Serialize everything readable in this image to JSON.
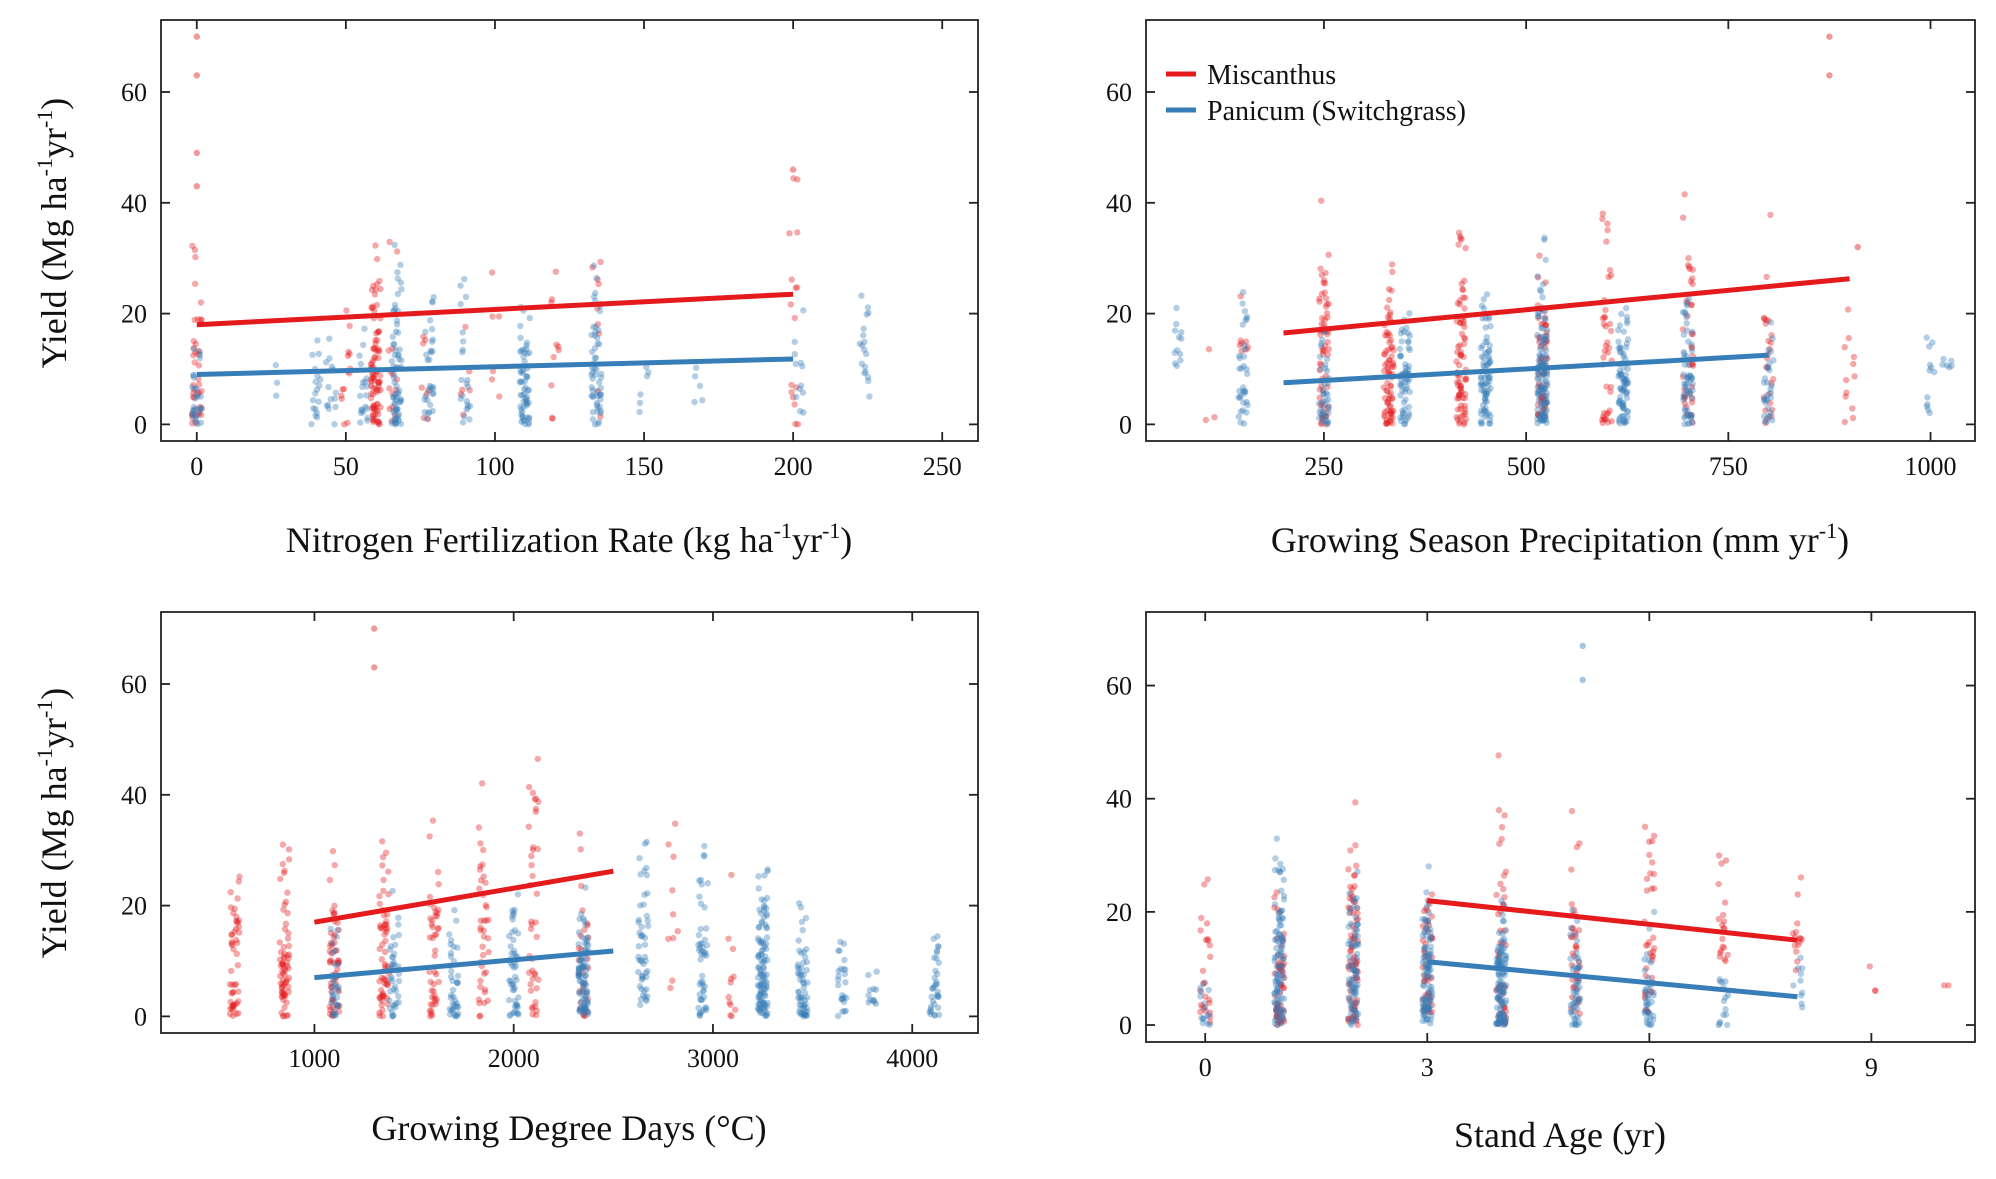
{
  "figure": {
    "ylabel_main": "Yield  (Mg ha",
    "sup_neg1": "-1",
    "ylabel_mid": "yr",
    "ylabel_end": ")"
  },
  "legend": {
    "items": [
      {
        "label": "Miscanthus",
        "color": "#e41a1c"
      },
      {
        "label": "Panicum (Switchgrass)",
        "color": "#377eb8"
      }
    ]
  },
  "chart_data": [
    {
      "id": "nitrogen",
      "type": "scatter",
      "xlabel": {
        "main": "Nitrogen Fertilization Rate  (kg ha",
        "sup1": "-1",
        "mid": "yr",
        "sup2": "-1",
        "end": ")"
      },
      "ylabel": "Yield  (Mg ha-1yr-1)",
      "xlim": [
        -12,
        262
      ],
      "ylim": [
        -3,
        73
      ],
      "xticks": [
        0,
        50,
        100,
        150,
        200,
        250
      ],
      "yticks": [
        0,
        20,
        40,
        60
      ],
      "series": [
        {
          "name": "Miscanthus",
          "color": "#e41a1c",
          "fit": [
            [
              0,
              18.0
            ],
            [
              200,
              23.5
            ]
          ],
          "clusters": [
            [
              0,
              0,
              36,
              40
            ],
            [
              50,
              0,
              30,
              14
            ],
            [
              60,
              0,
              36,
              90
            ],
            [
              66,
              0,
              45,
              14
            ],
            [
              76,
              0,
              25,
              8
            ],
            [
              90,
              0,
              30,
              6
            ],
            [
              100,
              5,
              33,
              6
            ],
            [
              120,
              0,
              33,
              10
            ],
            [
              134,
              0,
              50,
              10
            ],
            [
              200,
              0,
              50,
              16
            ]
          ],
          "outliers": [
            [
              0,
              70
            ],
            [
              0,
              63
            ],
            [
              0,
              49
            ],
            [
              0,
              43
            ],
            [
              200,
              46
            ]
          ]
        },
        {
          "name": "Panicum (Switchgrass)",
          "color": "#377eb8",
          "fit": [
            [
              0,
              9.0
            ],
            [
              200,
              11.8
            ]
          ],
          "clusters": [
            [
              0,
              0,
              25,
              30
            ],
            [
              28,
              2,
              14,
              3
            ],
            [
              40,
              0,
              18,
              18
            ],
            [
              45,
              0,
              20,
              14
            ],
            [
              56,
              0,
              25,
              20
            ],
            [
              67,
              0,
              33,
              70
            ],
            [
              78,
              0,
              30,
              30
            ],
            [
              90,
              0,
              32,
              22
            ],
            [
              110,
              0,
              25,
              60
            ],
            [
              134,
              0,
              33,
              55
            ],
            [
              150,
              0,
              15,
              6
            ],
            [
              168,
              4,
              15,
              5
            ],
            [
              202,
              2,
              28,
              12
            ],
            [
              224,
              5,
              34,
              18
            ]
          ],
          "outliers": []
        }
      ]
    },
    {
      "id": "precipitation",
      "type": "scatter",
      "xlabel": {
        "main": "Growing Season Precipitation  (mm yr",
        "sup1": "-1",
        "end": ")"
      },
      "ylabel": "Yield  (Mg ha-1yr-1)",
      "xlim": [
        30,
        1055
      ],
      "ylim": [
        -3,
        73
      ],
      "xticks": [
        250,
        500,
        750,
        1000
      ],
      "yticks": [
        0,
        20,
        40,
        60
      ],
      "series": [
        {
          "name": "Miscanthus",
          "color": "#e41a1c",
          "fit": [
            [
              200,
              16.5
            ],
            [
              900,
              26.3
            ]
          ],
          "clusters": [
            [
              110,
              0,
              27,
              3
            ],
            [
              150,
              10,
              36,
              8
            ],
            [
              250,
              0,
              42,
              60
            ],
            [
              330,
              0,
              33,
              80
            ],
            [
              420,
              0,
              40,
              80
            ],
            [
              520,
              0,
              35,
              60
            ],
            [
              600,
              0,
              48,
              40
            ],
            [
              700,
              0,
              50,
              40
            ],
            [
              800,
              0,
              45,
              25
            ],
            [
              900,
              0,
              38,
              12
            ]
          ],
          "outliers": [
            [
              875,
              70
            ],
            [
              875,
              63
            ],
            [
              910,
              32
            ]
          ]
        },
        {
          "name": "Panicum (Switchgrass)",
          "color": "#377eb8",
          "fit": [
            [
              200,
              7.5
            ],
            [
              800,
              12.5
            ]
          ],
          "clusters": [
            [
              70,
              10,
              22,
              12
            ],
            [
              150,
              0,
              26,
              35
            ],
            [
              250,
              0,
              22,
              40
            ],
            [
              350,
              0,
              25,
              60
            ],
            [
              450,
              0,
              28,
              80
            ],
            [
              520,
              0,
              35,
              120
            ],
            [
              620,
              0,
              25,
              80
            ],
            [
              700,
              0,
              28,
              60
            ],
            [
              800,
              0,
              20,
              30
            ],
            [
              1000,
              2,
              26,
              12
            ],
            [
              1020,
              10,
              15,
              6
            ]
          ],
          "outliers": []
        }
      ]
    },
    {
      "id": "gdd",
      "type": "scatter",
      "xlabel": {
        "main": "Growing Degree Days  (°C)"
      },
      "ylabel": "Yield  (Mg ha-1yr-1)",
      "xlim": [
        230,
        4330
      ],
      "ylim": [
        -3,
        73
      ],
      "xticks": [
        1000,
        2000,
        3000,
        4000
      ],
      "yticks": [
        0,
        20,
        40,
        60
      ],
      "series": [
        {
          "name": "Miscanthus",
          "color": "#e41a1c",
          "fit": [
            [
              1000,
              17.0
            ],
            [
              2500,
              26.2
            ]
          ],
          "clusters": [
            [
              600,
              0,
              30,
              50
            ],
            [
              850,
              0,
              35,
              70
            ],
            [
              1100,
              0,
              32,
              60
            ],
            [
              1350,
              0,
              35,
              60
            ],
            [
              1600,
              0,
              38,
              45
            ],
            [
              1850,
              0,
              48,
              40
            ],
            [
              2100,
              0,
              50,
              40
            ],
            [
              2350,
              0,
              40,
              30
            ],
            [
              2800,
              5,
              41,
              10
            ],
            [
              3100,
              0,
              28,
              12
            ]
          ],
          "outliers": [
            [
              1300,
              70
            ],
            [
              1300,
              63
            ]
          ]
        },
        {
          "name": "Panicum (Switchgrass)",
          "color": "#377eb8",
          "fit": [
            [
              1000,
              7.0
            ],
            [
              2500,
              11.8
            ]
          ],
          "clusters": [
            [
              1100,
              0,
              22,
              30
            ],
            [
              1400,
              0,
              25,
              40
            ],
            [
              1700,
              0,
              25,
              40
            ],
            [
              2000,
              0,
              27,
              50
            ],
            [
              2350,
              0,
              26,
              90
            ],
            [
              2650,
              2,
              38,
              50
            ],
            [
              2950,
              0,
              35,
              50
            ],
            [
              3250,
              0,
              30,
              110
            ],
            [
              3450,
              0,
              22,
              60
            ],
            [
              3650,
              0,
              16,
              25
            ],
            [
              3800,
              2,
              12,
              12
            ],
            [
              4110,
              0,
              18,
              35
            ]
          ],
          "outliers": []
        }
      ]
    },
    {
      "id": "stand-age",
      "type": "scatter",
      "xlabel": {
        "main": "Stand Age (yr)"
      },
      "ylabel": "Yield  (Mg ha-1yr-1)",
      "xlim": [
        -0.8,
        10.4
      ],
      "ylim": [
        -3,
        73
      ],
      "xticks": [
        0,
        3,
        6,
        9
      ],
      "yticks": [
        0,
        20,
        40,
        60
      ],
      "series": [
        {
          "name": "Miscanthus",
          "color": "#e41a1c",
          "fit": [
            [
              3,
              22.0
            ],
            [
              8,
              15.0
            ]
          ],
          "clusters": [
            [
              0,
              0,
              35,
              25
            ],
            [
              1,
              0,
              25,
              60
            ],
            [
              2,
              0,
              41,
              80
            ],
            [
              3,
              2,
              33,
              50
            ],
            [
              4,
              0,
              50,
              50
            ],
            [
              5,
              2,
              41,
              40
            ],
            [
              6,
              2,
              46,
              35
            ],
            [
              7,
              10,
              31,
              20
            ],
            [
              8,
              8,
              30,
              15
            ],
            [
              9,
              6,
              18,
              3
            ],
            [
              10,
              7,
              7,
              2
            ]
          ],
          "outliers": []
        },
        {
          "name": "Panicum (Switchgrass)",
          "color": "#377eb8",
          "fit": [
            [
              3,
              11.2
            ],
            [
              8,
              5.0
            ]
          ],
          "clusters": [
            [
              0,
              0,
              12,
              15
            ],
            [
              1,
              0,
              37,
              100
            ],
            [
              2,
              0,
              30,
              80
            ],
            [
              3,
              0,
              30,
              100
            ],
            [
              4,
              0,
              25,
              120
            ],
            [
              5,
              0,
              22,
              50
            ],
            [
              6,
              0,
              22,
              40
            ],
            [
              7,
              0,
              15,
              15
            ],
            [
              8,
              3,
              15,
              10
            ]
          ],
          "outliers": [
            [
              5.1,
              67
            ],
            [
              5.1,
              61
            ]
          ]
        }
      ]
    }
  ]
}
